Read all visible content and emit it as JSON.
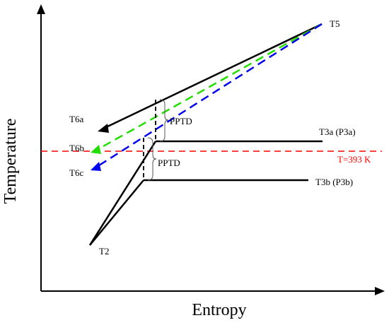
{
  "axes": {
    "x_label": "Entropy",
    "y_label": "Temperature"
  },
  "reference_line": {
    "label": "T=393 K",
    "color": "#ff0000"
  },
  "state_points": {
    "t2": "T2",
    "t3a": "T3a (P3a)",
    "t3b": "T3b (P3b)",
    "t5": "T5",
    "t6a": "T6a",
    "t6b": "T6b",
    "t6c": "T6c"
  },
  "pinch_labels": {
    "upper": "PPTD",
    "lower": "PPTD"
  },
  "colors": {
    "line_a": "#000000",
    "line_b": "#00dd00",
    "line_c": "#0000ff",
    "reference": "#ff0000"
  }
}
